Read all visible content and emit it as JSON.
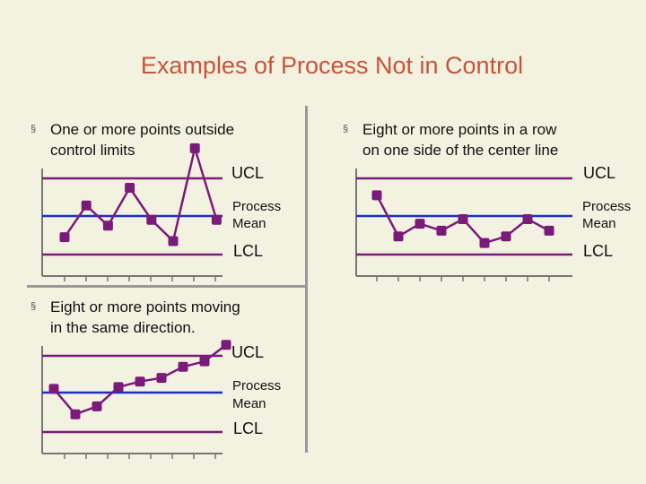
{
  "title": "Examples of Process Not in Control",
  "bullet_mark": "§",
  "colors": {
    "limit_line": "#7a1a7a",
    "mean_line": "#1a2fc8",
    "data_line": "#7a1a7a",
    "point": "#7a1a7a",
    "axis": "#777777",
    "title": "#c8553a"
  },
  "panels": [
    {
      "bullet_line1": "One or more points outside",
      "bullet_line2": "control limits",
      "ucl_label": "UCL",
      "mean_label_1": "Process",
      "mean_label_2": "Mean",
      "lcl_label": "LCL"
    },
    {
      "bullet_line1": "Eight or more points in a row",
      "bullet_line2": "on one side of the center line",
      "ucl_label": "UCL",
      "mean_label_1": "Process",
      "mean_label_2": "Mean",
      "lcl_label": "LCL"
    },
    {
      "bullet_line1": "Eight or more points moving",
      "bullet_line2": "in the same direction.",
      "ucl_label": "UCL",
      "mean_label_1": "Process",
      "mean_label_2": "Mean",
      "lcl_label": "LCL"
    }
  ],
  "chart_data": [
    {
      "type": "line",
      "title": "One or more points outside control limits",
      "limits": {
        "ucl": 1,
        "mean": 0,
        "lcl": -1
      },
      "x": [
        1,
        2,
        3,
        4,
        5,
        6,
        7,
        8
      ],
      "values": [
        -0.55,
        0.28,
        -0.25,
        0.75,
        -0.1,
        -0.65,
        1.8,
        -0.1
      ]
    },
    {
      "type": "line",
      "title": "Eight or more points in a row on one side of the center line",
      "limits": {
        "ucl": 1,
        "mean": 0,
        "lcl": -1
      },
      "x": [
        1,
        2,
        3,
        4,
        5,
        6,
        7,
        8,
        9
      ],
      "values": [
        0.55,
        -0.53,
        -0.2,
        -0.38,
        -0.08,
        -0.7,
        -0.53,
        -0.08,
        -0.38
      ]
    },
    {
      "type": "line",
      "title": "Eight or more points moving in the same direction.",
      "limits": {
        "ucl": 1,
        "mean": 0,
        "lcl": -1
      },
      "x": [
        1,
        2,
        3,
        4,
        5,
        6,
        7,
        8,
        9
      ],
      "values": [
        0.1,
        -0.55,
        -0.35,
        0.15,
        0.3,
        0.4,
        0.7,
        0.85,
        1.3
      ]
    }
  ]
}
